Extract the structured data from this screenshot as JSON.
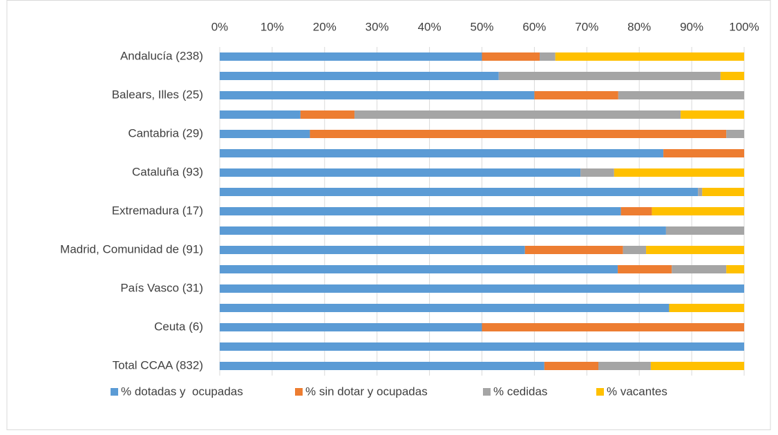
{
  "chart_data": {
    "type": "stacked_bar_horizontal",
    "categories": [
      "Andalucía (238)",
      null,
      "Balears, Illes (25)",
      null,
      "Cantabria (29)",
      null,
      "Cataluña (93)",
      null,
      "Extremadura (17)",
      null,
      "Madrid, Comunidad de (91)",
      null,
      "País Vasco (31)",
      null,
      "Ceuta (6)",
      null,
      "Total CCAA (832)"
    ],
    "series": [
      {
        "name": "% dotadas y  ocupadas",
        "color": "#5b9bd5",
        "values": [
          50,
          53.2,
          60,
          15.4,
          17.2,
          84.6,
          68.8,
          91.2,
          76.5,
          85.1,
          58.2,
          75.9,
          100,
          85.7,
          50,
          100,
          61.9
        ]
      },
      {
        "name": "% sin dotar y ocupadas",
        "color": "#ed7d31",
        "values": [
          11,
          0,
          16,
          10.3,
          79.4,
          15.4,
          0,
          0,
          5.9,
          0,
          18.7,
          10.3,
          0,
          0,
          50,
          0,
          10.3
        ]
      },
      {
        "name": "% cedidas",
        "color": "#a5a5a5",
        "values": [
          3,
          42.3,
          24,
          62.2,
          3.4,
          0,
          6.4,
          0.8,
          0,
          14.9,
          4.4,
          10.4,
          0,
          0,
          0,
          0,
          10
        ]
      },
      {
        "name": "% vacantes",
        "color": "#ffc000",
        "values": [
          36,
          4.5,
          0,
          12.1,
          0,
          0,
          24.8,
          8,
          17.6,
          0,
          18.7,
          3.4,
          0,
          14.3,
          0,
          0,
          17.8
        ]
      }
    ],
    "xlim": [
      0,
      100
    ],
    "xticks": [
      {
        "value": 0,
        "label": "0%"
      },
      {
        "value": 10,
        "label": "10%"
      },
      {
        "value": 20,
        "label": "20%"
      },
      {
        "value": 30,
        "label": "30%"
      },
      {
        "value": 40,
        "label": "40%"
      },
      {
        "value": 50,
        "label": "50%"
      },
      {
        "value": 60,
        "label": "60%"
      },
      {
        "value": 70,
        "label": "70%"
      },
      {
        "value": 80,
        "label": "80%"
      },
      {
        "value": 90,
        "label": "90%"
      },
      {
        "value": 100,
        "label": "100%"
      }
    ],
    "grid": true,
    "legend": "bottom"
  }
}
